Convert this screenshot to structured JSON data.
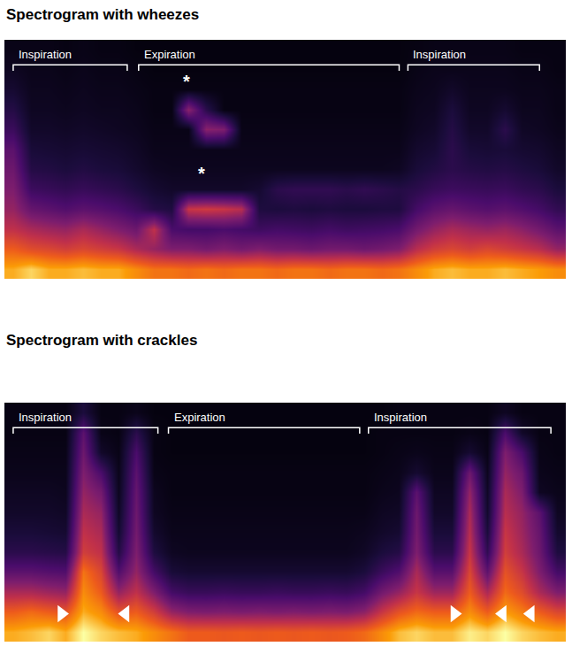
{
  "chart_data": [
    {
      "type": "heatmap",
      "title": "Spectrogram with wheezes",
      "tick_labels": false,
      "xlim": [
        -0.5,
        31.5
      ],
      "ylim": [
        -0.5,
        11.5
      ],
      "zlim": [
        0,
        1
      ],
      "phases": [
        {
          "label": "Inspiration",
          "start": 0.0,
          "end": 6.5
        },
        {
          "label": "Expiration",
          "start": 7.15,
          "end": 22.0
        },
        {
          "label": "Inspiration",
          "start": 22.5,
          "end": 30.0
        }
      ],
      "annotations": [
        {
          "text": "*",
          "x": 9.9,
          "y": 9.4
        },
        {
          "text": "*",
          "x": 10.75,
          "y": 4.8
        }
      ],
      "z": [
        [
          0.9,
          0.95,
          0.9,
          0.9,
          0.92,
          0.9,
          0.9,
          0.85,
          0.8,
          0.8,
          0.78,
          0.8,
          0.78,
          0.8,
          0.8,
          0.78,
          0.8,
          0.8,
          0.78,
          0.8,
          0.8,
          0.78,
          0.8,
          0.85,
          0.9,
          0.92,
          0.9,
          0.9,
          0.92,
          0.9,
          0.88,
          0.85
        ],
        [
          0.75,
          0.7,
          0.68,
          0.65,
          0.68,
          0.65,
          0.62,
          0.55,
          0.5,
          0.45,
          0.45,
          0.42,
          0.45,
          0.42,
          0.45,
          0.42,
          0.42,
          0.4,
          0.42,
          0.42,
          0.4,
          0.42,
          0.45,
          0.58,
          0.65,
          0.68,
          0.65,
          0.68,
          0.65,
          0.62,
          0.58,
          0.5
        ],
        [
          0.6,
          0.55,
          0.52,
          0.5,
          0.55,
          0.5,
          0.45,
          0.4,
          0.6,
          0.3,
          0.28,
          0.28,
          0.3,
          0.28,
          0.26,
          0.28,
          0.27,
          0.26,
          0.28,
          0.26,
          0.27,
          0.28,
          0.3,
          0.42,
          0.5,
          0.55,
          0.52,
          0.5,
          0.52,
          0.48,
          0.42,
          0.35
        ],
        [
          0.5,
          0.38,
          0.35,
          0.32,
          0.35,
          0.33,
          0.3,
          0.25,
          0.18,
          0.16,
          0.62,
          0.64,
          0.62,
          0.58,
          0.16,
          0.15,
          0.16,
          0.15,
          0.16,
          0.15,
          0.15,
          0.16,
          0.16,
          0.28,
          0.35,
          0.38,
          0.35,
          0.33,
          0.35,
          0.32,
          0.28,
          0.22
        ],
        [
          0.45,
          0.26,
          0.24,
          0.22,
          0.24,
          0.22,
          0.2,
          0.16,
          0.12,
          0.1,
          0.1,
          0.1,
          0.1,
          0.1,
          0.12,
          0.2,
          0.22,
          0.22,
          0.22,
          0.2,
          0.22,
          0.2,
          0.18,
          0.2,
          0.24,
          0.26,
          0.25,
          0.24,
          0.25,
          0.22,
          0.2,
          0.15
        ],
        [
          0.4,
          0.18,
          0.17,
          0.15,
          0.17,
          0.15,
          0.14,
          0.11,
          0.08,
          0.07,
          0.07,
          0.07,
          0.07,
          0.07,
          0.07,
          0.07,
          0.07,
          0.07,
          0.07,
          0.07,
          0.07,
          0.07,
          0.08,
          0.14,
          0.17,
          0.2,
          0.18,
          0.17,
          0.18,
          0.16,
          0.14,
          0.1
        ],
        [
          0.35,
          0.14,
          0.13,
          0.12,
          0.13,
          0.12,
          0.11,
          0.09,
          0.06,
          0.06,
          0.06,
          0.06,
          0.06,
          0.06,
          0.06,
          0.06,
          0.06,
          0.06,
          0.06,
          0.06,
          0.06,
          0.06,
          0.06,
          0.11,
          0.13,
          0.2,
          0.14,
          0.13,
          0.14,
          0.12,
          0.11,
          0.08
        ],
        [
          0.25,
          0.1,
          0.1,
          0.09,
          0.1,
          0.09,
          0.08,
          0.07,
          0.05,
          0.05,
          0.05,
          0.48,
          0.45,
          0.05,
          0.05,
          0.05,
          0.05,
          0.05,
          0.05,
          0.05,
          0.05,
          0.05,
          0.05,
          0.08,
          0.1,
          0.18,
          0.1,
          0.1,
          0.2,
          0.09,
          0.08,
          0.06
        ],
        [
          0.18,
          0.08,
          0.08,
          0.07,
          0.08,
          0.07,
          0.07,
          0.06,
          0.04,
          0.04,
          0.48,
          0.2,
          0.04,
          0.04,
          0.04,
          0.04,
          0.04,
          0.04,
          0.04,
          0.04,
          0.04,
          0.04,
          0.04,
          0.07,
          0.08,
          0.15,
          0.08,
          0.08,
          0.12,
          0.07,
          0.07,
          0.05
        ],
        [
          0.12,
          0.07,
          0.07,
          0.06,
          0.07,
          0.06,
          0.06,
          0.05,
          0.04,
          0.04,
          0.04,
          0.04,
          0.04,
          0.04,
          0.04,
          0.04,
          0.04,
          0.04,
          0.04,
          0.04,
          0.04,
          0.04,
          0.04,
          0.06,
          0.07,
          0.1,
          0.07,
          0.07,
          0.07,
          0.06,
          0.06,
          0.05
        ],
        [
          0.08,
          0.06,
          0.06,
          0.05,
          0.06,
          0.05,
          0.05,
          0.04,
          0.03,
          0.03,
          0.03,
          0.03,
          0.03,
          0.03,
          0.03,
          0.03,
          0.03,
          0.03,
          0.03,
          0.03,
          0.03,
          0.03,
          0.03,
          0.05,
          0.06,
          0.06,
          0.06,
          0.06,
          0.06,
          0.05,
          0.05,
          0.04
        ],
        [
          0.05,
          0.05,
          0.05,
          0.04,
          0.05,
          0.04,
          0.04,
          0.03,
          0.03,
          0.03,
          0.03,
          0.03,
          0.03,
          0.03,
          0.03,
          0.03,
          0.03,
          0.03,
          0.03,
          0.03,
          0.03,
          0.03,
          0.03,
          0.04,
          0.05,
          0.05,
          0.05,
          0.05,
          0.05,
          0.04,
          0.04,
          0.04
        ]
      ]
    },
    {
      "type": "heatmap",
      "title": "Spectrogram with crackles",
      "tick_labels": false,
      "xlim": [
        -0.5,
        31.5
      ],
      "ylim": [
        -0.5,
        11.5
      ],
      "zlim": [
        0,
        1
      ],
      "phases": [
        {
          "label": "Inspiration",
          "start": 0.0,
          "end": 8.25
        },
        {
          "label": "Expiration",
          "start": 8.85,
          "end": 19.75
        },
        {
          "label": "Inspiration",
          "start": 20.25,
          "end": 30.65
        }
      ],
      "arrowheads": [
        {
          "x": 2.75,
          "y": 0.9,
          "direction": "right"
        },
        {
          "x": 6.4,
          "y": 0.9,
          "direction": "left"
        },
        {
          "x": 25.15,
          "y": 0.9,
          "direction": "right"
        },
        {
          "x": 27.9,
          "y": 0.9,
          "direction": "left"
        },
        {
          "x": 29.5,
          "y": 0.9,
          "direction": "left"
        }
      ],
      "z": [
        [
          0.9,
          0.92,
          0.95,
          0.9,
          1.0,
          0.95,
          0.92,
          0.9,
          0.85,
          0.8,
          0.75,
          0.75,
          0.74,
          0.75,
          0.74,
          0.75,
          0.74,
          0.75,
          0.74,
          0.75,
          0.78,
          0.85,
          0.92,
          0.95,
          0.92,
          0.92,
          0.98,
          0.95,
          1.0,
          0.95,
          0.92,
          0.9
        ],
        [
          0.75,
          0.78,
          0.75,
          0.72,
          0.9,
          0.85,
          0.72,
          0.75,
          0.65,
          0.5,
          0.45,
          0.44,
          0.45,
          0.44,
          0.45,
          0.44,
          0.45,
          0.44,
          0.45,
          0.44,
          0.48,
          0.62,
          0.72,
          0.78,
          0.75,
          0.75,
          0.85,
          0.75,
          0.88,
          0.82,
          0.75,
          0.68
        ],
        [
          0.55,
          0.55,
          0.52,
          0.5,
          0.85,
          0.75,
          0.5,
          0.6,
          0.45,
          0.28,
          0.24,
          0.24,
          0.25,
          0.24,
          0.24,
          0.25,
          0.24,
          0.24,
          0.25,
          0.24,
          0.28,
          0.42,
          0.5,
          0.62,
          0.52,
          0.52,
          0.75,
          0.55,
          0.78,
          0.7,
          0.55,
          0.45
        ],
        [
          0.35,
          0.35,
          0.33,
          0.32,
          0.8,
          0.68,
          0.32,
          0.5,
          0.28,
          0.14,
          0.12,
          0.12,
          0.12,
          0.12,
          0.12,
          0.12,
          0.12,
          0.12,
          0.12,
          0.12,
          0.15,
          0.25,
          0.32,
          0.55,
          0.34,
          0.34,
          0.68,
          0.36,
          0.72,
          0.62,
          0.45,
          0.28
        ],
        [
          0.2,
          0.2,
          0.19,
          0.18,
          0.65,
          0.6,
          0.18,
          0.45,
          0.16,
          0.08,
          0.07,
          0.07,
          0.07,
          0.07,
          0.07,
          0.07,
          0.07,
          0.07,
          0.07,
          0.07,
          0.09,
          0.15,
          0.18,
          0.45,
          0.2,
          0.2,
          0.62,
          0.22,
          0.65,
          0.55,
          0.4,
          0.16
        ],
        [
          0.14,
          0.14,
          0.13,
          0.12,
          0.6,
          0.55,
          0.12,
          0.42,
          0.11,
          0.06,
          0.06,
          0.06,
          0.06,
          0.06,
          0.06,
          0.06,
          0.06,
          0.06,
          0.06,
          0.06,
          0.07,
          0.1,
          0.12,
          0.42,
          0.14,
          0.14,
          0.58,
          0.15,
          0.62,
          0.52,
          0.38,
          0.11
        ],
        [
          0.1,
          0.1,
          0.1,
          0.09,
          0.55,
          0.5,
          0.09,
          0.4,
          0.08,
          0.05,
          0.05,
          0.05,
          0.05,
          0.05,
          0.05,
          0.05,
          0.05,
          0.05,
          0.05,
          0.05,
          0.05,
          0.08,
          0.09,
          0.4,
          0.1,
          0.1,
          0.55,
          0.11,
          0.58,
          0.5,
          0.35,
          0.08
        ],
        [
          0.08,
          0.08,
          0.08,
          0.07,
          0.5,
          0.42,
          0.07,
          0.38,
          0.07,
          0.04,
          0.04,
          0.04,
          0.04,
          0.04,
          0.04,
          0.04,
          0.04,
          0.04,
          0.04,
          0.04,
          0.04,
          0.06,
          0.07,
          0.35,
          0.08,
          0.08,
          0.5,
          0.09,
          0.55,
          0.45,
          0.08,
          0.06
        ],
        [
          0.06,
          0.06,
          0.06,
          0.06,
          0.45,
          0.3,
          0.06,
          0.35,
          0.05,
          0.04,
          0.04,
          0.04,
          0.04,
          0.04,
          0.04,
          0.04,
          0.04,
          0.04,
          0.04,
          0.04,
          0.04,
          0.05,
          0.06,
          0.12,
          0.06,
          0.06,
          0.4,
          0.07,
          0.5,
          0.4,
          0.06,
          0.05
        ],
        [
          0.05,
          0.05,
          0.05,
          0.05,
          0.4,
          0.1,
          0.05,
          0.3,
          0.04,
          0.03,
          0.03,
          0.03,
          0.03,
          0.03,
          0.03,
          0.03,
          0.03,
          0.03,
          0.03,
          0.03,
          0.03,
          0.04,
          0.05,
          0.06,
          0.05,
          0.05,
          0.12,
          0.05,
          0.45,
          0.3,
          0.05,
          0.04
        ],
        [
          0.04,
          0.04,
          0.04,
          0.04,
          0.35,
          0.05,
          0.04,
          0.2,
          0.04,
          0.03,
          0.03,
          0.03,
          0.03,
          0.03,
          0.03,
          0.03,
          0.03,
          0.03,
          0.03,
          0.03,
          0.03,
          0.04,
          0.04,
          0.04,
          0.04,
          0.04,
          0.05,
          0.04,
          0.3,
          0.1,
          0.04,
          0.04
        ],
        [
          0.04,
          0.04,
          0.04,
          0.04,
          0.15,
          0.04,
          0.04,
          0.06,
          0.03,
          0.03,
          0.03,
          0.03,
          0.03,
          0.03,
          0.03,
          0.03,
          0.03,
          0.03,
          0.03,
          0.03,
          0.03,
          0.03,
          0.04,
          0.04,
          0.04,
          0.04,
          0.04,
          0.04,
          0.08,
          0.04,
          0.04,
          0.04
        ]
      ]
    }
  ]
}
